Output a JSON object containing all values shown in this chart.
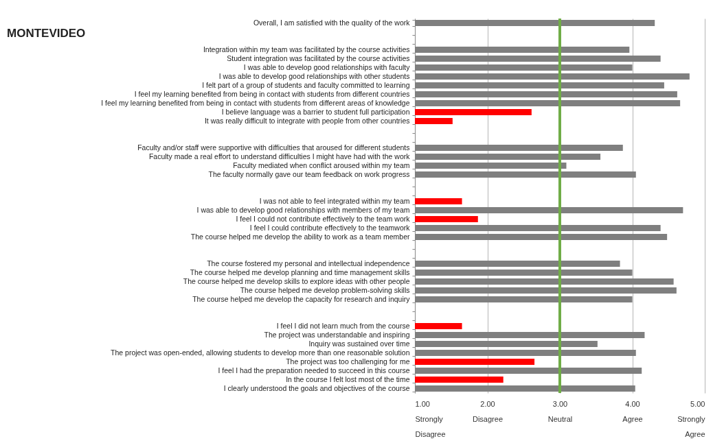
{
  "chart_data": {
    "type": "bar",
    "orientation": "horizontal",
    "title": "MONTEVIDEO",
    "categories": [
      "Overall, I am satisfied with the quality of the work",
      null,
      null,
      "Integration within my team was facilitated by the course activities",
      "Student integration was facilitated by the course activities",
      "I was able to develop good relationships with faculty",
      "I was able to develop good relationships with other students",
      "I felt part of a group of students and faculty committed to learning",
      "I feel my learning benefited from being in contact with students from different countries",
      "I feel my learning benefited from being in contact with students from different areas of knowledge",
      "I believe language was a barrier to student full participation",
      "It was really difficult to integrate with people from other countries",
      null,
      null,
      "Faculty and/or staff were supportive with difficulties that aroused for different students",
      "Faculty made a real effort to understand difficulties I might have had with the work",
      "Faculty mediated when conflict aroused within my team",
      "The faculty normally gave our team feedback on work progress",
      null,
      null,
      "I was not able to feel integrated within my team",
      "I was able to develop good relationships with members of my team",
      "I feel I could not contribute effectively to the team work",
      "I feel I could contribute effectively to the teamwork",
      "The course helped me develop the ability to work as a team member",
      null,
      null,
      "The course fostered my personal and intellectual independence",
      "The course helped me develop planning and time management skills",
      "The course helped me develop skills to explore ideas with other people",
      "The course helped me develop problem-solving skills",
      "The course helped me develop the capacity for research and inquiry",
      null,
      null,
      "I feel I did not learn much from the course",
      "The project was understandable and inspiring",
      "Inquiry was sustained over time",
      "The project was open-ended, allowing students to develop more than one reasonable solution",
      "The project was too challenging for me",
      "I feel I had the preparation needed to succeed in this course",
      "In the course I felt lost most of the time",
      "I clearly understood the goals and objectives of the course"
    ],
    "values": [
      4.31,
      null,
      null,
      3.96,
      4.39,
      4.0,
      4.79,
      4.44,
      4.62,
      4.66,
      2.61,
      1.52,
      null,
      null,
      3.87,
      3.56,
      3.09,
      4.05,
      null,
      null,
      1.65,
      4.7,
      1.87,
      4.39,
      4.48,
      null,
      null,
      3.83,
      4.0,
      4.57,
      4.61,
      4.0,
      null,
      null,
      1.65,
      4.17,
      3.52,
      4.05,
      2.65,
      4.13,
      2.22,
      4.04
    ],
    "colors": [
      "#7f7f7f",
      null,
      null,
      "#7f7f7f",
      "#7f7f7f",
      "#7f7f7f",
      "#7f7f7f",
      "#7f7f7f",
      "#7f7f7f",
      "#7f7f7f",
      "#ff0000",
      "#ff0000",
      null,
      null,
      "#7f7f7f",
      "#7f7f7f",
      "#7f7f7f",
      "#7f7f7f",
      null,
      null,
      "#ff0000",
      "#7f7f7f",
      "#ff0000",
      "#7f7f7f",
      "#7f7f7f",
      null,
      null,
      "#7f7f7f",
      "#7f7f7f",
      "#7f7f7f",
      "#7f7f7f",
      "#7f7f7f",
      null,
      null,
      "#ff0000",
      "#7f7f7f",
      "#7f7f7f",
      "#7f7f7f",
      "#ff0000",
      "#7f7f7f",
      "#ff0000",
      "#7f7f7f"
    ],
    "xlim": [
      1,
      5
    ],
    "xticks": [
      {
        "value": 1,
        "label": "1.00\nStrongly\nDisagree"
      },
      {
        "value": 2,
        "label": "2.00\nDisagree"
      },
      {
        "value": 3,
        "label": "3.00\nNeutral"
      },
      {
        "value": 4,
        "label": "4.00\nAgree"
      },
      {
        "value": 5,
        "label": "5.00\nStrongly\nAgree"
      }
    ],
    "grid": "x",
    "ref_lines": [
      {
        "axis": "x",
        "value": 3,
        "color": "#70ad47"
      }
    ]
  }
}
